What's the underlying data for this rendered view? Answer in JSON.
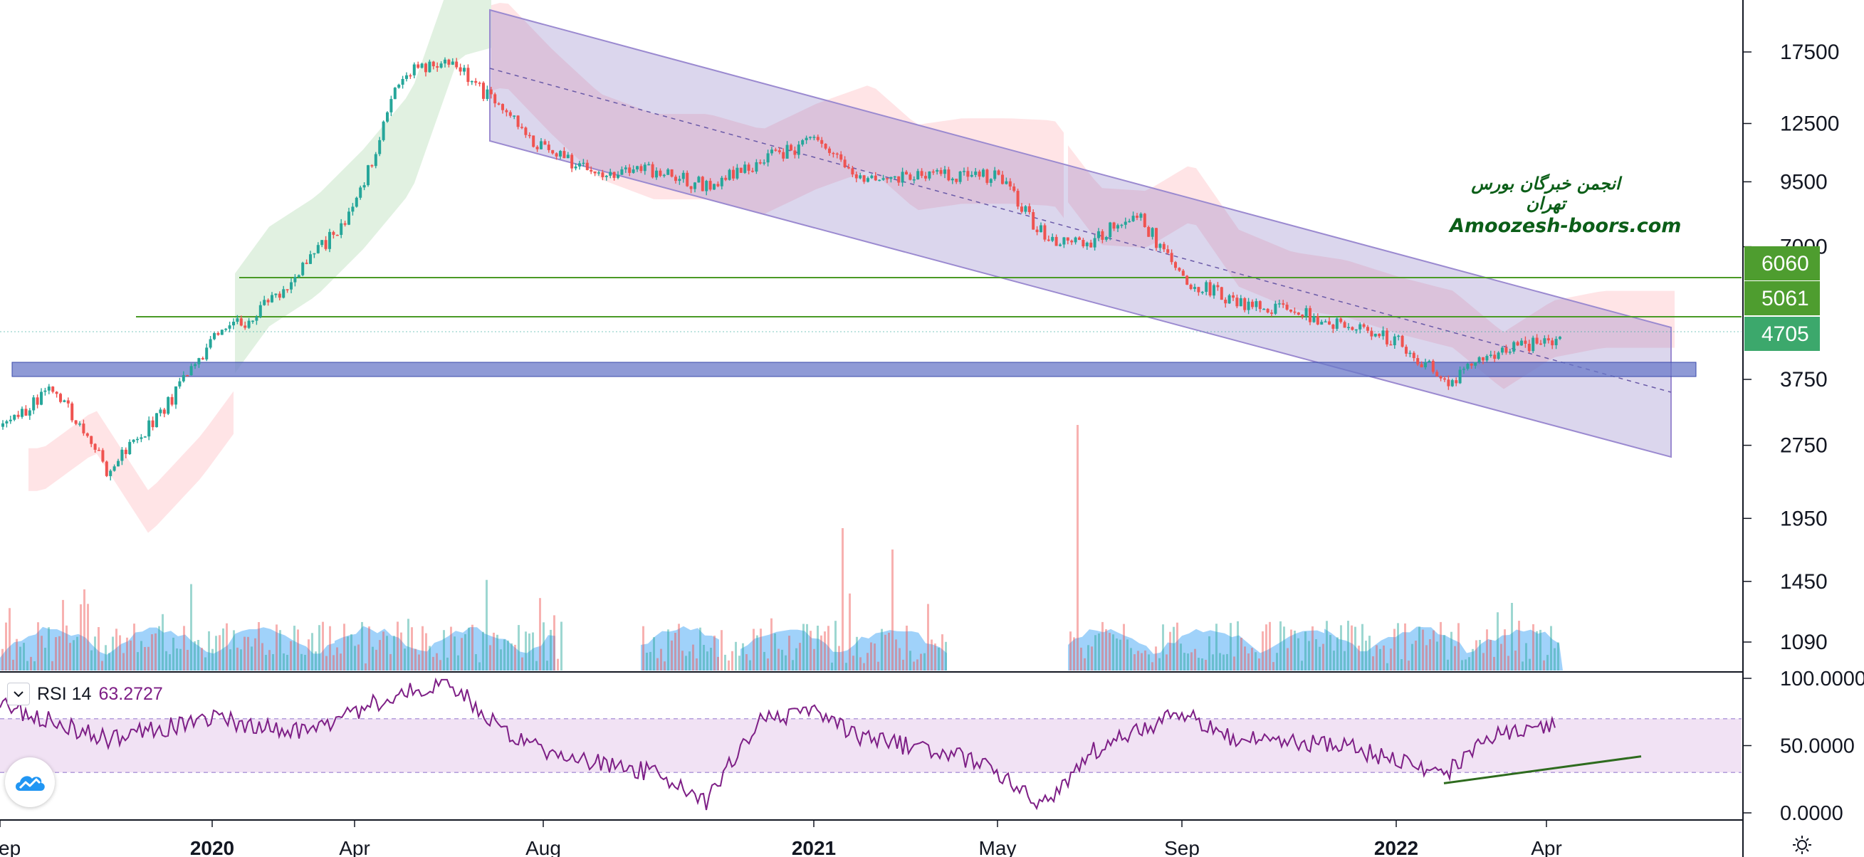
{
  "chart_data": [
    {
      "type": "candlestick",
      "panel": "price",
      "y_scale": "log",
      "ylim": [
        1000,
        20000
      ],
      "x_axis_labels": [
        {
          "text": "ep",
          "major": false
        },
        {
          "text": "2020",
          "major": true
        },
        {
          "text": "Apr",
          "major": false
        },
        {
          "text": "Aug",
          "major": false
        },
        {
          "text": "2021",
          "major": true
        },
        {
          "text": "May",
          "major": false
        },
        {
          "text": "Sep",
          "major": false
        },
        {
          "text": "2022",
          "major": true
        },
        {
          "text": "Apr",
          "major": false
        }
      ],
      "y_tick_labels": [
        "17500",
        "12500",
        "9500",
        "7000",
        "3750",
        "2750",
        "1950",
        "1450",
        "1090"
      ],
      "price_anchors": {
        "dates": [
          "2019-09",
          "2019-10",
          "2019-11",
          "2019-12",
          "2020-01",
          "2020-02",
          "2020-03",
          "2020-04",
          "2020-05",
          "2020-06",
          "2020-07",
          "2020-08",
          "2020-09",
          "2020-10",
          "2020-11",
          "2020-12",
          "2021-01",
          "2021-02",
          "2021-03",
          "2021-04",
          "2021-05",
          "2021-06",
          "2021-07",
          "2021-08",
          "2021-09",
          "2021-10",
          "2021-11",
          "2021-12",
          "2022-01",
          "2022-02",
          "2022-03",
          "2022-04"
        ],
        "close": [
          3000,
          3600,
          2450,
          3200,
          4500,
          5200,
          6500,
          8500,
          16000,
          17000,
          13500,
          11000,
          10000,
          10000,
          9300,
          10500,
          11500,
          9500,
          9800,
          9800,
          9700,
          7300,
          7200,
          8200,
          6000,
          5400,
          5200,
          4800,
          4500,
          3700,
          4300,
          4500
        ]
      },
      "horizontal_levels": [
        {
          "value": 6060,
          "label": "6060",
          "color": "#4a9a26"
        },
        {
          "value": 5061,
          "label": "5061",
          "color": "#4a9a26"
        },
        {
          "value": 4705,
          "label": "4705",
          "color": "#26a69a"
        }
      ],
      "support_zone": {
        "from": 3850,
        "to": 4000,
        "color": "#6a78c8"
      },
      "descending_channel": {
        "upper": [
          {
            "date": "2020-07",
            "value": 19000
          },
          {
            "date": "2022-06",
            "value": 4900
          }
        ],
        "lower": [
          {
            "date": "2020-07",
            "value": 11800
          },
          {
            "date": "2022-06",
            "value": 2600
          }
        ],
        "color": "#9b8ad0"
      },
      "ichimoku_cloud": true,
      "volume": true
    },
    {
      "type": "line",
      "panel": "rsi",
      "name": "RSI 14",
      "last_value": "63.2727",
      "ylim": [
        0,
        100
      ],
      "y_tick_labels": [
        "100.0000",
        "50.0000",
        "0.0000"
      ],
      "band": [
        30,
        70
      ],
      "anchors": {
        "dates": [
          "2019-09",
          "2019-11",
          "2020-01",
          "2020-03",
          "2020-05",
          "2020-06",
          "2020-07",
          "2020-08",
          "2020-10",
          "2020-11",
          "2020-12",
          "2021-01",
          "2021-02",
          "2021-04",
          "2021-05",
          "2021-06",
          "2021-07",
          "2021-09",
          "2021-10",
          "2021-12",
          "2022-02",
          "2022-03",
          "2022-04"
        ],
        "values": [
          80,
          55,
          70,
          60,
          90,
          98,
          65,
          45,
          30,
          8,
          70,
          75,
          55,
          45,
          30,
          5,
          45,
          75,
          55,
          50,
          30,
          60,
          63.27
        ]
      },
      "divergence_line": [
        {
          "date": "2022-02",
          "value": 22
        },
        {
          "date": "2022-06",
          "value": 42
        }
      ]
    }
  ],
  "watermark": {
    "fa": "انجمن خبرگان بورس تهران",
    "en": "Amoozesh-boors.com"
  },
  "rsi_legend": {
    "name": "RSI 14",
    "value": "63.2727"
  },
  "colors": {
    "up": "#26a69a",
    "down": "#ef5350",
    "rsi": "#7e1f86",
    "volume_area": "#42a5f5",
    "channel": "#9b8ad0"
  },
  "icons": {
    "logo": "tradingview-cloud-icon",
    "settings": "gear-icon",
    "collapse": "chevron-down-icon"
  }
}
